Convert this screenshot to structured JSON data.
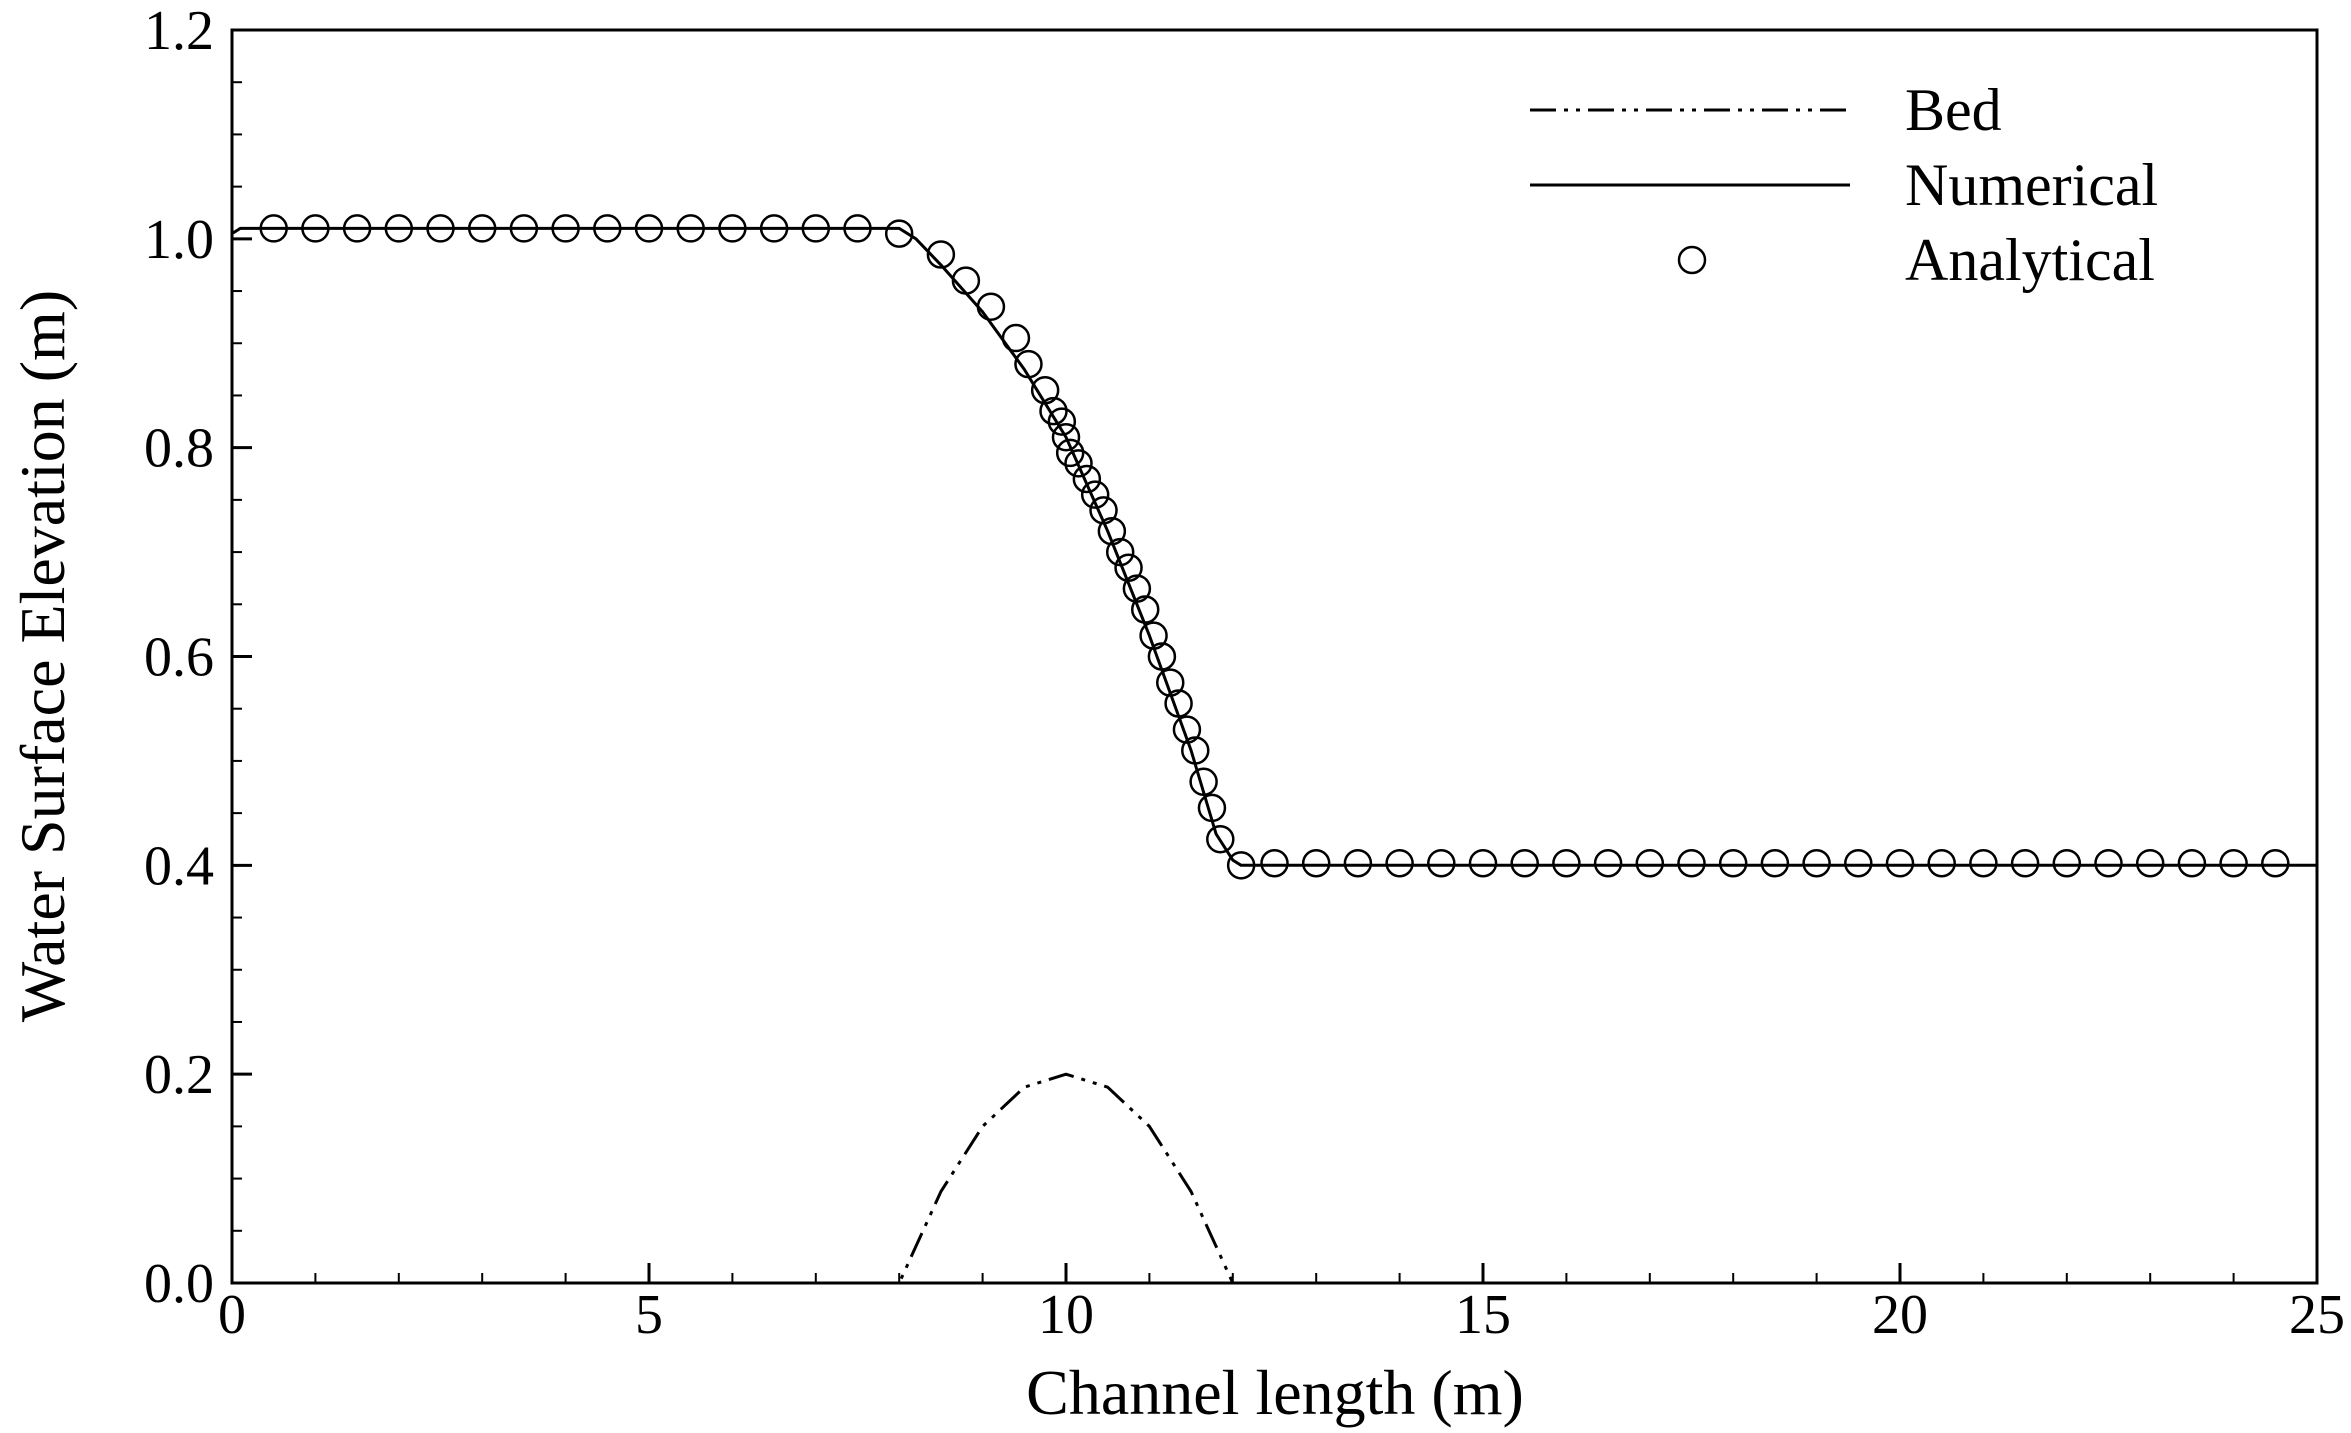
{
  "chart_data": {
    "type": "line",
    "xlabel": "Channel length (m)",
    "ylabel": "Water Surface Elevation (m)",
    "xlim": [
      0,
      25
    ],
    "ylim": [
      0,
      1.2
    ],
    "xticks": [
      0,
      5,
      10,
      15,
      20,
      25
    ],
    "yticks": [
      0.0,
      0.2,
      0.4,
      0.6,
      0.8,
      1.0,
      1.2
    ],
    "x_tick_labels": [
      "0",
      "5",
      "10",
      "15",
      "20",
      "25"
    ],
    "y_tick_labels": [
      "0.0",
      "0.2",
      "0.4",
      "0.6",
      "0.8",
      "1.0",
      "1.2"
    ],
    "grid": false,
    "legend_position": "top-right",
    "series": [
      {
        "name": "Bed",
        "style": "dash-dot-dot",
        "color": "#000000",
        "x": [
          0,
          8,
          8.5,
          9,
          9.5,
          10,
          10.5,
          11,
          11.5,
          12,
          25
        ],
        "y": [
          0,
          0,
          0.0875,
          0.15,
          0.1875,
          0.2,
          0.1875,
          0.15,
          0.0875,
          0,
          0
        ]
      },
      {
        "name": "Numerical",
        "style": "solid",
        "color": "#000000",
        "x": [
          0,
          0.1,
          8.0,
          8.2,
          8.5,
          9.0,
          9.5,
          10.0,
          10.5,
          11.0,
          11.5,
          11.8,
          12.0,
          12.1,
          25
        ],
        "y": [
          1.005,
          1.01,
          1.01,
          1.0,
          0.975,
          0.93,
          0.875,
          0.81,
          0.72,
          0.62,
          0.51,
          0.43,
          0.405,
          0.4,
          0.4
        ]
      },
      {
        "name": "Analytical",
        "style": "circle-markers",
        "color": "#000000",
        "x": [
          0.5,
          1.0,
          1.5,
          2.0,
          2.5,
          3.0,
          3.5,
          4.0,
          4.5,
          5.0,
          5.5,
          6.0,
          6.5,
          7.0,
          7.5,
          8.0,
          8.5,
          8.8,
          9.1,
          9.4,
          9.55,
          9.75,
          9.85,
          9.95,
          10.0,
          10.05,
          10.15,
          10.25,
          10.35,
          10.45,
          10.55,
          10.65,
          10.75,
          10.85,
          10.95,
          11.05,
          11.15,
          11.25,
          11.35,
          11.45,
          11.55,
          11.65,
          11.75,
          11.85,
          12.1,
          12.5,
          13.0,
          13.5,
          14.0,
          14.5,
          15.0,
          15.5,
          16.0,
          16.5,
          17.0,
          17.5,
          18.0,
          18.5,
          19.0,
          19.5,
          20.0,
          20.5,
          21.0,
          21.5,
          22.0,
          22.5,
          23.0,
          23.5,
          24.0,
          24.5
        ],
        "y": [
          1.01,
          1.01,
          1.01,
          1.01,
          1.01,
          1.01,
          1.01,
          1.01,
          1.01,
          1.01,
          1.01,
          1.01,
          1.01,
          1.01,
          1.01,
          1.005,
          0.985,
          0.96,
          0.935,
          0.905,
          0.88,
          0.855,
          0.835,
          0.825,
          0.81,
          0.795,
          0.785,
          0.77,
          0.755,
          0.74,
          0.72,
          0.7,
          0.685,
          0.665,
          0.645,
          0.62,
          0.6,
          0.575,
          0.555,
          0.53,
          0.51,
          0.48,
          0.455,
          0.425,
          0.4,
          0.402,
          0.402,
          0.402,
          0.402,
          0.402,
          0.402,
          0.402,
          0.402,
          0.402,
          0.402,
          0.402,
          0.402,
          0.402,
          0.402,
          0.402,
          0.402,
          0.402,
          0.402,
          0.402,
          0.402,
          0.402,
          0.402,
          0.402,
          0.402,
          0.402
        ]
      }
    ]
  }
}
